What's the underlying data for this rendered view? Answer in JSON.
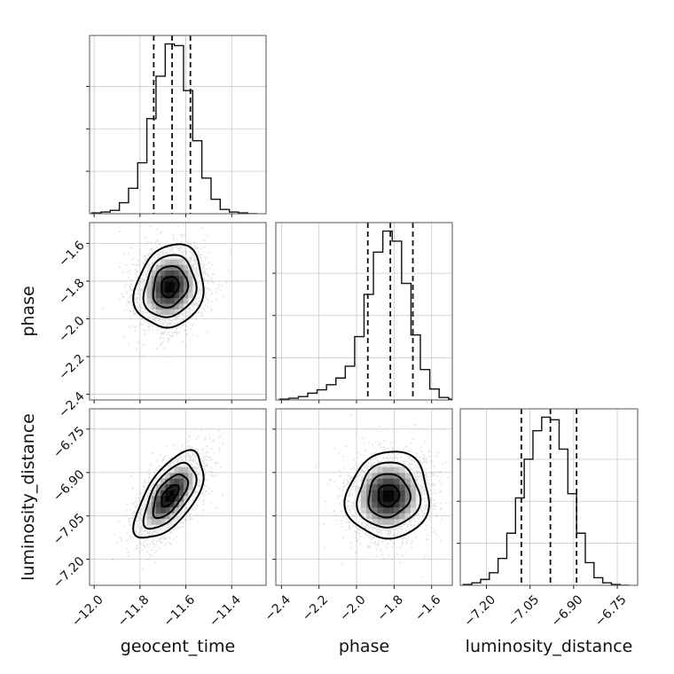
{
  "chart_data": {
    "type": "corner",
    "parameters": [
      "geocent_time",
      "phase",
      "luminosity_distance"
    ],
    "ranges": {
      "geocent_time": [
        -12.02,
        -11.25
      ],
      "phase": [
        -2.43,
        -1.49
      ],
      "luminosity_distance": [
        -7.29,
        -6.68
      ]
    },
    "ticks": {
      "geocent_time": [
        -12.0,
        -11.8,
        -11.6,
        -11.4
      ],
      "phase": [
        -2.4,
        -2.2,
        -2.0,
        -1.8,
        -1.6
      ],
      "luminosity_distance": [
        -7.2,
        -7.05,
        -6.9,
        -6.75
      ]
    },
    "tick_labels": {
      "geocent_time": [
        "−12.0",
        "−11.8",
        "−11.6",
        "−11.4"
      ],
      "phase": [
        "−2.4",
        "−2.2",
        "−2.0",
        "−1.8",
        "−1.6"
      ],
      "luminosity_distance": [
        "−7.20",
        "−7.05",
        "−6.90",
        "−6.75"
      ]
    },
    "axis_labels": {
      "x": [
        "geocent_time",
        "phase",
        "luminosity_distance"
      ],
      "y": [
        "phase",
        "luminosity_distance"
      ]
    },
    "histograms": [
      {
        "parameter": "geocent_time",
        "bin_edges": [
          -12.01,
          -11.97,
          -11.93,
          -11.89,
          -11.85,
          -11.81,
          -11.77,
          -11.73,
          -11.69,
          -11.65,
          -11.61,
          -11.57,
          -11.53,
          -11.49,
          -11.45,
          -11.41,
          -11.37,
          -11.33,
          -11.29
        ],
        "counts": [
          1,
          2,
          4,
          13,
          30,
          60,
          112,
          162,
          200,
          198,
          145,
          86,
          42,
          17,
          5,
          2,
          1,
          0
        ],
        "quantiles": [
          -11.74,
          -11.66,
          -11.58
        ]
      },
      {
        "parameter": "phase",
        "bin_edges": [
          -2.41,
          -2.36,
          -2.31,
          -2.26,
          -2.21,
          -2.16,
          -2.11,
          -2.06,
          -2.01,
          -1.96,
          -1.91,
          -1.86,
          -1.81,
          -1.76,
          -1.71,
          -1.66,
          -1.61,
          -1.56,
          -1.51,
          -1.46
        ],
        "counts": [
          1,
          2,
          4,
          8,
          12,
          18,
          26,
          40,
          75,
          125,
          175,
          200,
          188,
          138,
          77,
          36,
          13,
          3,
          1
        ],
        "quantiles": [
          -1.94,
          -1.82,
          -1.7
        ]
      },
      {
        "parameter": "luminosity_distance",
        "bin_edges": [
          -7.28,
          -7.25,
          -7.22,
          -7.19,
          -7.16,
          -7.13,
          -7.1,
          -7.07,
          -7.04,
          -7.01,
          -6.98,
          -6.95,
          -6.92,
          -6.89,
          -6.86,
          -6.83,
          -6.8,
          -6.77,
          -6.74,
          -6.71
        ],
        "counts": [
          1,
          3,
          7,
          15,
          32,
          62,
          104,
          150,
          184,
          200,
          197,
          162,
          109,
          62,
          27,
          9,
          3,
          1,
          0
        ],
        "quantiles": [
          -7.08,
          -6.98,
          -6.89
        ]
      }
    ],
    "joint_distributions": [
      {
        "x": "geocent_time",
        "y": "phase",
        "mean": [
          -11.67,
          -1.83
        ],
        "sd": [
          0.075,
          0.11
        ],
        "corr": 0.15
      },
      {
        "x": "geocent_time",
        "y": "luminosity_distance",
        "mean": [
          -11.67,
          -6.98
        ],
        "sd": [
          0.075,
          0.075
        ],
        "corr": 0.62
      },
      {
        "x": "phase",
        "y": "luminosity_distance",
        "mean": [
          -1.83,
          -6.98
        ],
        "sd": [
          0.11,
          0.075
        ],
        "corr": 0.05
      }
    ],
    "contour_sigma_levels": [
      0.5,
      1.0,
      1.5,
      2.0
    ]
  },
  "colors": {
    "line": "#111111",
    "grid": "#c8c8c8",
    "frame": "#555555",
    "sample": "#a8a8a8",
    "density_min": "#f2f2f2",
    "density_max": "#000000"
  }
}
